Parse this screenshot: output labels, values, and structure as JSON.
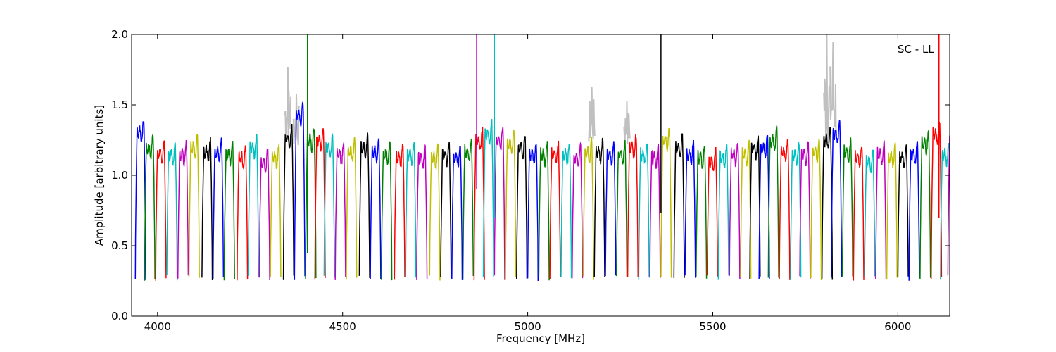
{
  "chart_data": {
    "type": "line",
    "title": "",
    "xlabel": "Frequency [MHz]",
    "ylabel": "Amplitude [arbitrary units]",
    "xlim": [
      3930,
      6140
    ],
    "ylim": [
      0,
      2.0
    ],
    "x_ticks": [
      4000,
      4500,
      5000,
      5500,
      6000
    ],
    "y_ticks": [
      0.0,
      0.5,
      1.0,
      1.5,
      2.0
    ],
    "x_tick_labels": [
      "4000",
      "4500",
      "5000",
      "5500",
      "6000"
    ],
    "y_tick_labels": [
      "0.0",
      "0.5",
      "1.0",
      "1.5",
      "2.0"
    ],
    "annotation": "SC - LL",
    "grid": false,
    "colors": [
      "#0000ff",
      "#008000",
      "#ff0000",
      "#00bfbf",
      "#bf00bf",
      "#bfbf00",
      "#000000"
    ],
    "background_color": "#c0c0c0",
    "band_width_mhz": 28,
    "band_floor": 0.27,
    "band_levels": [
      [
        3940,
        1.36
      ],
      [
        3965,
        1.25
      ],
      [
        3995,
        1.2
      ],
      [
        4025,
        1.2
      ],
      [
        4055,
        1.2
      ],
      [
        4085,
        1.25
      ],
      [
        4120,
        1.22
      ],
      [
        4150,
        1.22
      ],
      [
        4180,
        1.2
      ],
      [
        4215,
        1.18
      ],
      [
        4245,
        1.25
      ],
      [
        4275,
        1.15
      ],
      [
        4305,
        1.18
      ],
      [
        4340,
        1.32
      ],
      [
        4370,
        1.48
      ],
      [
        4400,
        1.3
      ],
      [
        4425,
        1.3
      ],
      [
        4450,
        1.25
      ],
      [
        4480,
        1.2
      ],
      [
        4510,
        1.22
      ],
      [
        4545,
        1.25
      ],
      [
        4575,
        1.22
      ],
      [
        4605,
        1.2
      ],
      [
        4640,
        1.18
      ],
      [
        4670,
        1.2
      ],
      [
        4700,
        1.18
      ],
      [
        4735,
        1.18
      ],
      [
        4765,
        1.2
      ],
      [
        4795,
        1.18
      ],
      [
        4825,
        1.22
      ],
      [
        4855,
        1.3
      ],
      [
        4880,
        1.35
      ],
      [
        4910,
        1.3
      ],
      [
        4940,
        1.28
      ],
      [
        4970,
        1.25
      ],
      [
        5000,
        1.2
      ],
      [
        5030,
        1.2
      ],
      [
        5060,
        1.2
      ],
      [
        5090,
        1.2
      ],
      [
        5120,
        1.18
      ],
      [
        5150,
        1.22
      ],
      [
        5180,
        1.22
      ],
      [
        5210,
        1.2
      ],
      [
        5240,
        1.2
      ],
      [
        5270,
        1.25
      ],
      [
        5300,
        1.2
      ],
      [
        5330,
        1.18
      ],
      [
        5360,
        1.3
      ],
      [
        5395,
        1.25
      ],
      [
        5425,
        1.2
      ],
      [
        5455,
        1.18
      ],
      [
        5485,
        1.15
      ],
      [
        5515,
        1.18
      ],
      [
        5545,
        1.2
      ],
      [
        5575,
        1.2
      ],
      [
        5600,
        1.25
      ],
      [
        5625,
        1.25
      ],
      [
        5650,
        1.3
      ],
      [
        5680,
        1.22
      ],
      [
        5710,
        1.2
      ],
      [
        5735,
        1.2
      ],
      [
        5765,
        1.22
      ],
      [
        5795,
        1.3
      ],
      [
        5820,
        1.35
      ],
      [
        5850,
        1.22
      ],
      [
        5880,
        1.18
      ],
      [
        5910,
        1.15
      ],
      [
        5940,
        1.2
      ],
      [
        5970,
        1.18
      ],
      [
        6000,
        1.18
      ],
      [
        6030,
        1.2
      ],
      [
        6060,
        1.28
      ],
      [
        6090,
        1.35
      ],
      [
        6115,
        1.2
      ],
      [
        6135,
        1.3
      ]
    ],
    "spikes": [
      {
        "x": 4405,
        "y0": 0.45,
        "y1": 2.0,
        "color": "#008000"
      },
      {
        "x": 4862,
        "y0": 0.9,
        "y1": 2.0,
        "color": "#bf00bf"
      },
      {
        "x": 4910,
        "y0": 0.7,
        "y1": 2.0,
        "color": "#00bfbf"
      },
      {
        "x": 5360,
        "y0": 0.73,
        "y1": 2.0,
        "color": "#000000"
      },
      {
        "x": 6111,
        "y0": 0.7,
        "y1": 2.0,
        "color": "#ff0000"
      }
    ],
    "background_peaks": [
      {
        "x": 4352,
        "y": 1.77
      },
      {
        "x": 4375,
        "y": 1.58
      },
      {
        "x": 5173,
        "y": 1.63
      },
      {
        "x": 5268,
        "y": 1.53
      },
      {
        "x": 5808,
        "y": 2.0
      },
      {
        "x": 5825,
        "y": 1.95
      }
    ]
  }
}
